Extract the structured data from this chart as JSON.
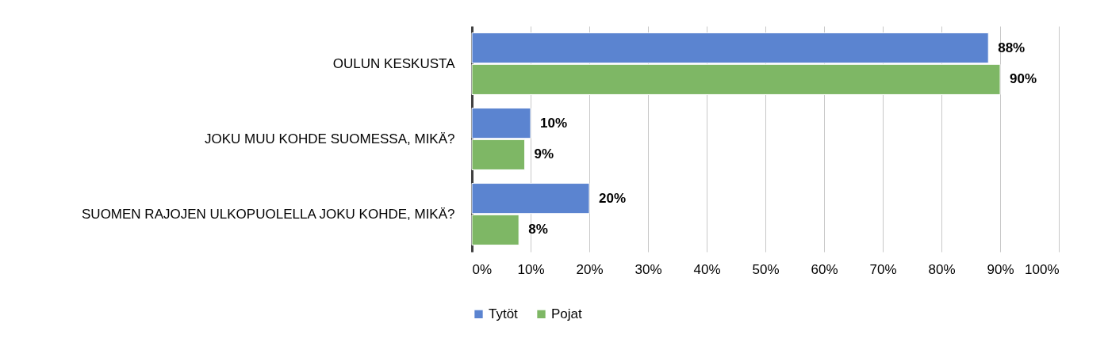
{
  "chart_data": {
    "type": "bar",
    "orientation": "horizontal",
    "categories": [
      "OULUN KESKUSTA",
      "JOKU MUU KOHDE SUOMESSA, MIKÄ?",
      "SUOMEN RAJOJEN ULKOPUOLELLA JOKU KOHDE, MIKÄ?"
    ],
    "series": [
      {
        "name": "Tytöt",
        "color": "#5b84d0",
        "values": [
          88,
          10,
          20
        ],
        "value_labels": [
          "88%",
          "10%",
          "20%"
        ]
      },
      {
        "name": "Pojat",
        "color": "#7eb765",
        "values": [
          90,
          9,
          8
        ],
        "value_labels": [
          "90%",
          "9%",
          "8%"
        ]
      }
    ],
    "xlim": [
      0,
      100
    ],
    "xticks": [
      {
        "value": 0,
        "label": "0%"
      },
      {
        "value": 10,
        "label": "10%"
      },
      {
        "value": 20,
        "label": "20%"
      },
      {
        "value": 30,
        "label": "30%"
      },
      {
        "value": 40,
        "label": "40%"
      },
      {
        "value": 50,
        "label": "50%"
      },
      {
        "value": 60,
        "label": "60%"
      },
      {
        "value": 70,
        "label": "70%"
      },
      {
        "value": 80,
        "label": "80%"
      },
      {
        "value": 90,
        "label": "90%"
      },
      {
        "value": 100,
        "label": "100%"
      }
    ],
    "grid": "x",
    "legend": "bottom"
  }
}
